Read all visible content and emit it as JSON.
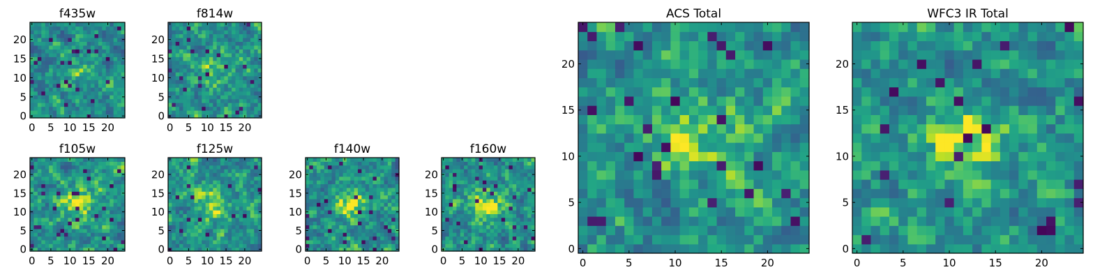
{
  "chart_data": [
    {
      "type": "heatmap",
      "title": "f435w",
      "xticks": [
        0,
        5,
        10,
        15,
        20
      ],
      "yticks": [
        0,
        5,
        10,
        15,
        20
      ],
      "xlim": [
        -0.5,
        24.5
      ],
      "ylim": [
        -0.5,
        24.5
      ],
      "grid": false,
      "colormap": "viridis",
      "size": [
        25,
        25
      ],
      "center_value": 0.4,
      "seed": 11
    },
    {
      "type": "heatmap",
      "title": "f814w",
      "xticks": [
        0,
        5,
        10,
        15,
        20
      ],
      "yticks": [
        0,
        5,
        10,
        15,
        20
      ],
      "xlim": [
        -0.5,
        24.5
      ],
      "ylim": [
        -0.5,
        24.5
      ],
      "grid": false,
      "colormap": "viridis",
      "size": [
        25,
        25
      ],
      "center_value": 0.55,
      "seed": 23
    },
    {
      "type": "heatmap",
      "title": "f105w",
      "xticks": [
        0,
        5,
        10,
        15,
        20
      ],
      "yticks": [
        0,
        5,
        10,
        15,
        20
      ],
      "xlim": [
        -0.5,
        24.5
      ],
      "ylim": [
        -0.5,
        24.5
      ],
      "grid": false,
      "colormap": "viridis",
      "size": [
        25,
        25
      ],
      "center_value": 0.9,
      "seed": 37
    },
    {
      "type": "heatmap",
      "title": "f125w",
      "xticks": [
        0,
        5,
        10,
        15,
        20
      ],
      "yticks": [
        0,
        5,
        10,
        15,
        20
      ],
      "xlim": [
        -0.5,
        24.5
      ],
      "ylim": [
        -0.5,
        24.5
      ],
      "grid": false,
      "colormap": "viridis",
      "size": [
        25,
        25
      ],
      "center_value": 0.85,
      "seed": 41
    },
    {
      "type": "heatmap",
      "title": "f140w",
      "xticks": [
        0,
        5,
        10,
        15,
        20
      ],
      "yticks": [
        0,
        5,
        10,
        15,
        20
      ],
      "xlim": [
        -0.5,
        24.5
      ],
      "ylim": [
        -0.5,
        24.5
      ],
      "grid": false,
      "colormap": "viridis",
      "size": [
        25,
        25
      ],
      "center_value": 0.85,
      "seed": 53
    },
    {
      "type": "heatmap",
      "title": "f160w",
      "xticks": [
        0,
        5,
        10,
        15,
        20
      ],
      "yticks": [
        0,
        5,
        10,
        15,
        20
      ],
      "xlim": [
        -0.5,
        24.5
      ],
      "ylim": [
        -0.5,
        24.5
      ],
      "grid": false,
      "colormap": "viridis",
      "size": [
        25,
        25
      ],
      "center_value": 0.85,
      "seed": 67
    },
    {
      "type": "heatmap",
      "title": "ACS Total",
      "xticks": [
        0,
        5,
        10,
        15,
        20
      ],
      "yticks": [
        0,
        5,
        10,
        15,
        20
      ],
      "xlim": [
        -0.5,
        24.5
      ],
      "ylim": [
        -0.5,
        24.5
      ],
      "grid": false,
      "colormap": "viridis",
      "size": [
        25,
        25
      ],
      "center_value": 0.85,
      "seed": 79
    },
    {
      "type": "heatmap",
      "title": "WFC3 IR Total",
      "xticks": [
        0,
        5,
        10,
        15,
        20
      ],
      "yticks": [
        0,
        5,
        10,
        15,
        20
      ],
      "xlim": [
        -0.5,
        24.5
      ],
      "ylim": [
        -0.5,
        24.5
      ],
      "grid": false,
      "colormap": "viridis",
      "size": [
        25,
        25
      ],
      "center_value": 0.9,
      "seed": 97
    }
  ]
}
